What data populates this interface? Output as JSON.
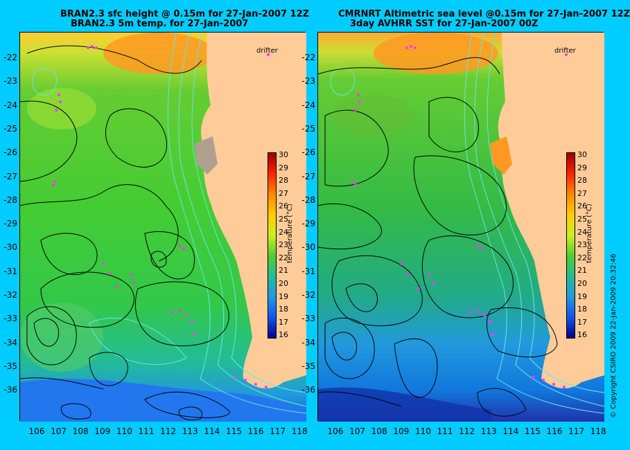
{
  "left": {
    "title1": "BRAN2.3 sfc height @ 0.15m for 27-Jan-2007 12Z",
    "title2": "BRAN2.3 5m temp. for 27-Jan-2007",
    "drifter": "drifter",
    "colorbar_label": "temperature (°C)"
  },
  "right": {
    "title1": "CMRNRT Altimetric sea level  @0.15m  for 27-Jan-2007 12Z",
    "title2": "3day AVHRR SST for 27-Jan-2007 00Z",
    "drifter": "drifter",
    "colorbar_label": "temperature (°C)"
  },
  "copyright": "© Copyright CSIRO 2009  22-Jan-2009 20:32:46",
  "map": {
    "lon_ticks": [
      "106",
      "107",
      "108",
      "109",
      "110",
      "111",
      "112",
      "113",
      "114",
      "115",
      "116",
      "117",
      "118"
    ],
    "lat_ticks": [
      "-22",
      "-23",
      "-24",
      "-25",
      "-26",
      "-27",
      "-28",
      "-29",
      "-30",
      "-31",
      "-32",
      "-33",
      "-34",
      "-35",
      "-36"
    ],
    "colorbar_ticks": [
      "30",
      "29",
      "28",
      "27",
      "26",
      "25",
      "24",
      "23",
      "22",
      "21",
      "20",
      "19",
      "18",
      "17",
      "16"
    ],
    "land_color": "#ffcc99",
    "contour_color": "#000000",
    "bathymetry_color": "#66e6e6",
    "drifter_color": "#ff33ff"
  }
}
